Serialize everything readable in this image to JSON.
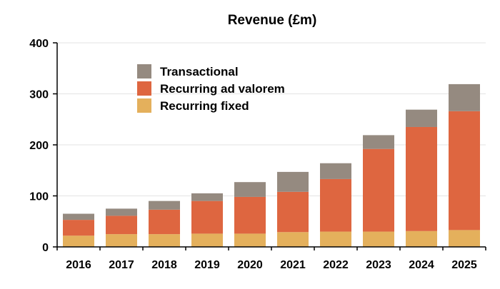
{
  "chart_data": {
    "type": "bar",
    "stacked": true,
    "title": "Revenue (£m)",
    "xlabel": "",
    "ylabel": "",
    "ylim": [
      0,
      400
    ],
    "yticks": [
      0,
      100,
      200,
      300,
      400
    ],
    "grid": true,
    "legend_position": "top-left",
    "categories": [
      "2016",
      "2017",
      "2018",
      "2019",
      "2020",
      "2021",
      "2022",
      "2023",
      "2024",
      "2025"
    ],
    "series": [
      {
        "name": "Recurring fixed",
        "color": "#E4B05C",
        "values": [
          22,
          25,
          25,
          26,
          26,
          29,
          30,
          30,
          31,
          33
        ]
      },
      {
        "name": "Recurring ad valorem",
        "color": "#DE6640",
        "values": [
          31,
          36,
          48,
          64,
          72,
          79,
          103,
          162,
          204,
          233
        ]
      },
      {
        "name": "Transactional",
        "color": "#958A80",
        "values": [
          12,
          14,
          17,
          15,
          29,
          39,
          31,
          27,
          34,
          53
        ]
      }
    ],
    "legend_order": [
      "Transactional",
      "Recurring ad valorem",
      "Recurring fixed"
    ]
  }
}
